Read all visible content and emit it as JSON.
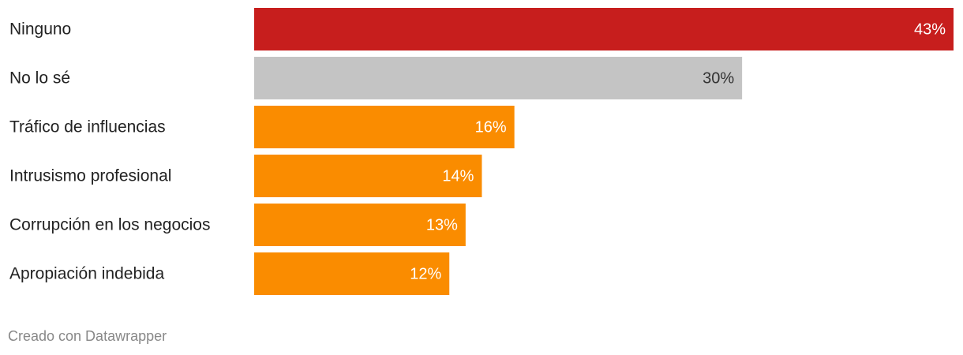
{
  "chart_data": {
    "type": "bar",
    "orientation": "horizontal",
    "categories": [
      "Ninguno",
      "No lo sé",
      "Tráfico de influencias",
      "Intrusismo profesional",
      "Corrupción en los negocios",
      "Apropiación indebida"
    ],
    "values": [
      43,
      30,
      16,
      14,
      13,
      12
    ],
    "value_labels": [
      "43%",
      "30%",
      "16%",
      "14%",
      "13%",
      "12%"
    ],
    "colors": [
      "#c71e1d",
      "#c4c4c4",
      "#fa8c00",
      "#fa8c00",
      "#fa8c00",
      "#fa8c00"
    ],
    "footer": "Creado con Datawrapper"
  }
}
